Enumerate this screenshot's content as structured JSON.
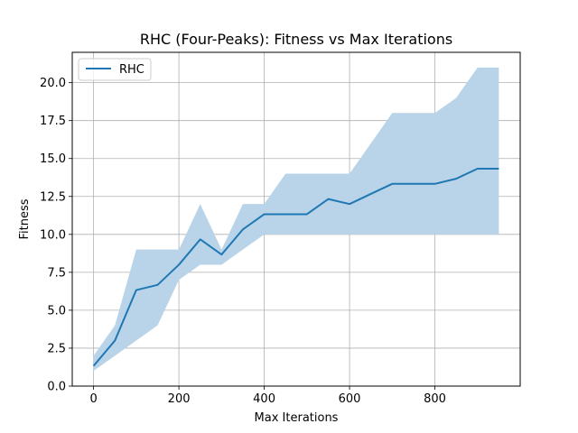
{
  "chart_data": {
    "type": "line",
    "title": "RHC (Four-Peaks): Fitness vs Max Iterations",
    "xlabel": "Max Iterations",
    "ylabel": "Fitness",
    "xlim": [
      -50,
      1000
    ],
    "ylim": [
      0,
      22
    ],
    "xticks": [
      0,
      200,
      400,
      600,
      800
    ],
    "xtick_labels": [
      "0",
      "200",
      "400",
      "600",
      "800"
    ],
    "yticks": [
      0,
      2.5,
      5,
      7.5,
      10,
      12.5,
      15,
      17.5,
      20
    ],
    "ytick_labels": [
      "0.0",
      "2.5",
      "5.0",
      "7.5",
      "10.0",
      "12.5",
      "15.0",
      "17.5",
      "20.0"
    ],
    "grid": true,
    "legend": {
      "position": "top-left",
      "entries": [
        "RHC"
      ]
    },
    "x": [
      0,
      50,
      100,
      150,
      200,
      250,
      300,
      350,
      400,
      450,
      500,
      550,
      600,
      650,
      700,
      750,
      800,
      850,
      900,
      950
    ],
    "series": [
      {
        "name": "RHC",
        "color": "#1f77b4",
        "fill_color": "#b9d4e9",
        "values": [
          1.33,
          3.0,
          6.33,
          6.67,
          8.0,
          9.67,
          8.67,
          10.33,
          11.33,
          11.33,
          11.33,
          12.33,
          12.0,
          12.67,
          13.33,
          13.33,
          13.33,
          13.67,
          14.33,
          14.33
        ],
        "upper": [
          2.0,
          4.0,
          9.0,
          9.0,
          9.0,
          12.0,
          9.0,
          12.0,
          12.0,
          14.0,
          14.0,
          14.0,
          14.0,
          16.0,
          18.0,
          18.0,
          18.0,
          19.0,
          21.0,
          21.0
        ],
        "lower": [
          1.0,
          2.0,
          3.0,
          4.0,
          7.0,
          8.0,
          8.0,
          9.0,
          10.0,
          10.0,
          10.0,
          10.0,
          10.0,
          10.0,
          10.0,
          10.0,
          10.0,
          10.0,
          10.0,
          10.0
        ]
      }
    ]
  }
}
